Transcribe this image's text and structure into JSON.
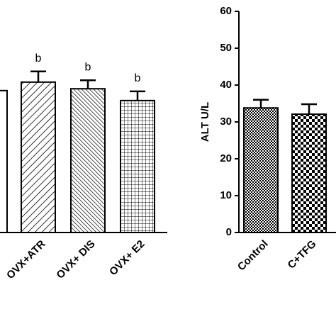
{
  "chart_data": [
    {
      "type": "bar",
      "categories": [
        null,
        "OVX+ATR",
        "OVX+ DIS",
        "OVX+ E2"
      ],
      "values": [
        38.5,
        40.8,
        39,
        35.8
      ],
      "errors": [
        null,
        2.9,
        2.3,
        2.5
      ],
      "annotations": [
        null,
        "b",
        "b",
        "b"
      ],
      "ylim": [
        0,
        60
      ],
      "patterns": [
        "none",
        "hatch",
        "dense-hatch",
        "grid"
      ]
    },
    {
      "type": "bar",
      "y_label": "ALT  U/L",
      "categories": [
        "Control",
        "C+TFG"
      ],
      "values": [
        33.8,
        32.1
      ],
      "errors": [
        2.2,
        2.7
      ],
      "ylim": [
        0,
        60
      ],
      "yticks": [
        0,
        10,
        20,
        30,
        40,
        50,
        60
      ],
      "patterns": [
        "fine-check",
        "check"
      ]
    }
  ]
}
